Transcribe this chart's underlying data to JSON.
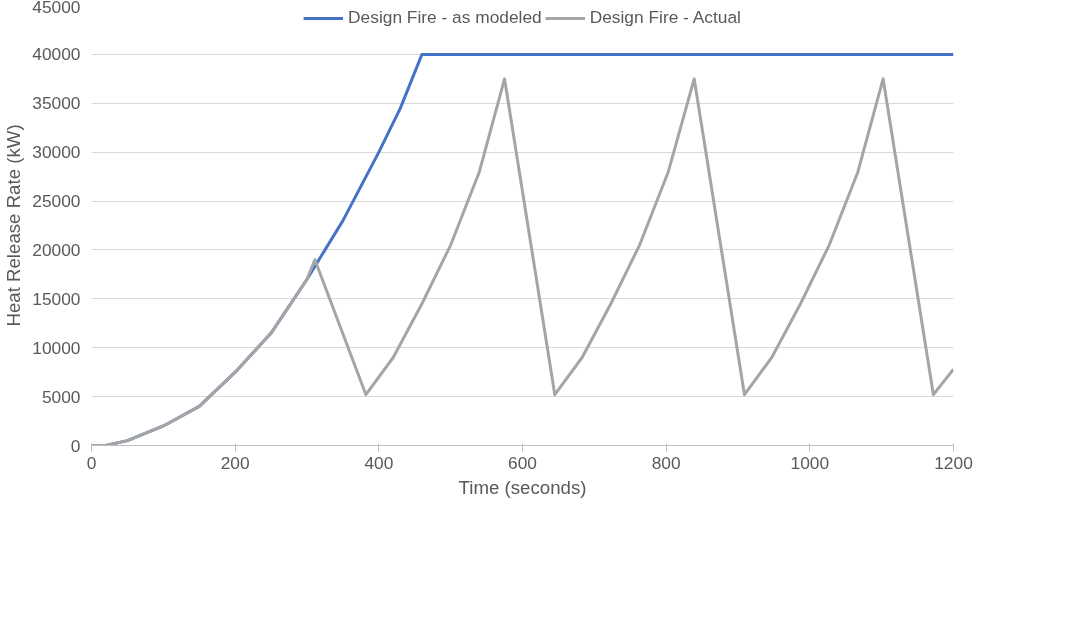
{
  "chart_data": {
    "type": "line",
    "xlabel": "Time (seconds)",
    "ylabel": "Heat Release Rate (kW)",
    "xlim": [
      0,
      1200
    ],
    "xticks": [
      0,
      200,
      400,
      600,
      800,
      1000,
      1200
    ],
    "ylim": [
      0,
      45000
    ],
    "yticks": [
      0,
      5000,
      10000,
      15000,
      20000,
      25000,
      30000,
      35000,
      40000,
      45000
    ],
    "grid": "y",
    "legend": "top",
    "line_style": "solid",
    "marker": "none",
    "series": [
      {
        "name": "Design Fire - as modeled",
        "color": "#4472c4",
        "x": [
          0,
          20,
          50,
          100,
          150,
          200,
          250,
          300,
          350,
          400,
          430,
          460,
          480,
          1200
        ],
        "values": [
          0,
          0,
          500,
          2000,
          4000,
          7500,
          11500,
          17000,
          23000,
          30000,
          34500,
          40000,
          40000,
          40000
        ]
      },
      {
        "name": "Design Fire - Actual",
        "color": "#a5a5a5",
        "x": [
          0,
          20,
          50,
          100,
          150,
          200,
          250,
          300,
          311,
          382,
          420,
          460,
          500,
          540,
          575,
          645,
          683,
          723,
          763,
          803,
          839,
          909,
          947,
          987,
          1027,
          1067,
          1102,
          1172,
          1200
        ],
        "values": [
          0,
          0,
          500,
          2000,
          4000,
          7500,
          11500,
          17000,
          19000,
          5200,
          9000,
          14500,
          20500,
          28000,
          37500,
          5200,
          9000,
          14500,
          20500,
          28000,
          37500,
          5200,
          9000,
          14500,
          20500,
          28000,
          37500,
          5200,
          7800
        ]
      }
    ]
  }
}
